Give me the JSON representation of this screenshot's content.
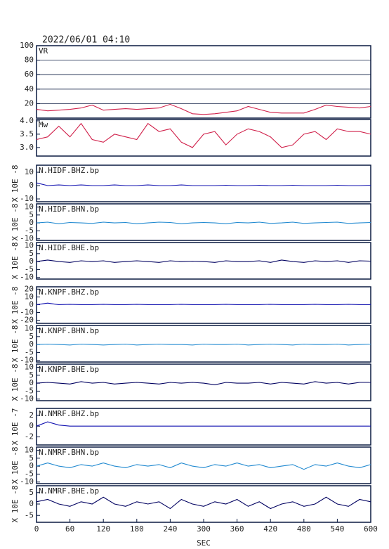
{
  "chart_data": [
    {
      "type": "line",
      "title": "2022/06/01 04:10",
      "label": "VR",
      "color": "#d0204a",
      "grid": true,
      "x": [
        0,
        20,
        40,
        60,
        80,
        100,
        120,
        140,
        160,
        180,
        200,
        220,
        240,
        260,
        280,
        300,
        320,
        340,
        360,
        380,
        400,
        420,
        440,
        460,
        480,
        500,
        520,
        540,
        560,
        580,
        600
      ],
      "values": [
        12,
        10,
        11,
        12,
        14,
        18,
        11,
        12,
        13,
        12,
        13,
        14,
        19,
        13,
        6,
        5,
        6,
        8,
        10,
        16,
        12,
        8,
        7,
        7,
        7,
        12,
        18,
        16,
        15,
        14,
        16
      ],
      "xlim": [
        0,
        600
      ],
      "ylim": [
        0,
        100
      ],
      "yticks": [
        20,
        40,
        60,
        80,
        100
      ]
    },
    {
      "type": "line",
      "label": "Mw",
      "color": "#d0204a",
      "grid": false,
      "x": [
        0,
        20,
        40,
        60,
        80,
        100,
        120,
        140,
        160,
        180,
        200,
        220,
        240,
        260,
        280,
        300,
        320,
        340,
        360,
        380,
        400,
        420,
        440,
        460,
        480,
        500,
        520,
        540,
        560,
        580,
        600
      ],
      "values": [
        3.3,
        3.4,
        3.8,
        3.4,
        3.9,
        3.3,
        3.2,
        3.5,
        3.4,
        3.3,
        3.9,
        3.6,
        3.7,
        3.2,
        3.0,
        3.5,
        3.6,
        3.1,
        3.5,
        3.7,
        3.6,
        3.4,
        3.0,
        3.1,
        3.5,
        3.6,
        3.3,
        3.7,
        3.6,
        3.6,
        3.5
      ],
      "xlim": [
        0,
        600
      ],
      "ylim": [
        2.68,
        4.05
      ],
      "yticks": [
        {
          "value": 3,
          "label": "3.0"
        },
        3.5,
        {
          "value": 4,
          "label": "4.0"
        }
      ]
    },
    {
      "type": "line",
      "label": "N.HIDF.BHZ.bp",
      "ylabel": "X 10E -8",
      "color": "#1010b0",
      "grid": false,
      "x": [
        0,
        20,
        40,
        60,
        80,
        100,
        120,
        140,
        160,
        180,
        200,
        220,
        240,
        260,
        280,
        300,
        320,
        340,
        360,
        380,
        400,
        420,
        440,
        460,
        480,
        500,
        520,
        540,
        560,
        580,
        600
      ],
      "values": [
        2,
        0,
        0.5,
        0,
        0.5,
        0,
        0,
        0.5,
        0,
        0,
        0.5,
        0,
        0,
        0.5,
        0,
        0,
        0,
        0.3,
        0,
        0,
        0.3,
        0,
        0,
        0.3,
        0,
        0,
        0,
        0.3,
        0,
        0,
        0.3
      ],
      "xlim": [
        0,
        600
      ],
      "ylim": [
        -12.1,
        15.3
      ],
      "yticks": [
        -10,
        0,
        10
      ]
    },
    {
      "type": "line",
      "label": "N.HIDF.BHN.bp",
      "ylabel": "X 10E -8",
      "color": "#1e88d0",
      "grid": false,
      "x": [
        0,
        20,
        40,
        60,
        80,
        100,
        120,
        140,
        160,
        180,
        200,
        220,
        240,
        260,
        280,
        300,
        320,
        340,
        360,
        380,
        400,
        420,
        440,
        460,
        480,
        500,
        520,
        540,
        560,
        580,
        600
      ],
      "values": [
        0,
        0.5,
        -0.5,
        0.3,
        0,
        -0.3,
        0.5,
        0,
        0.3,
        -0.5,
        0,
        0.5,
        0.3,
        -0.5,
        0,
        0.3,
        0,
        -0.5,
        0.3,
        0,
        0.5,
        -0.3,
        0,
        0.5,
        -0.3,
        0,
        0.3,
        0.5,
        -0.3,
        0,
        0.3
      ],
      "xlim": [
        0,
        600
      ],
      "ylim": [
        -11,
        12
      ],
      "yticks": [
        -10,
        -5,
        0,
        5,
        10
      ]
    },
    {
      "type": "line",
      "label": "N.HIDF.BHE.bp",
      "ylabel": "X 10E -8",
      "color": "#000060",
      "grid": false,
      "x": [
        0,
        20,
        40,
        60,
        80,
        100,
        120,
        140,
        160,
        180,
        200,
        220,
        240,
        260,
        280,
        300,
        320,
        340,
        360,
        380,
        400,
        420,
        440,
        460,
        480,
        500,
        520,
        540,
        560,
        580,
        600
      ],
      "values": [
        0,
        1,
        0,
        -0.5,
        0.5,
        0,
        0.5,
        -0.5,
        0,
        0.5,
        0,
        -0.5,
        0.5,
        0,
        0.3,
        0,
        -0.5,
        0.5,
        0,
        0,
        0.5,
        -0.5,
        1,
        0,
        -0.5,
        0.5,
        0,
        0.5,
        -0.5,
        0.5,
        0.3
      ],
      "xlim": [
        0,
        600
      ],
      "ylim": [
        -11,
        12
      ],
      "yticks": [
        -10,
        -5,
        0,
        5,
        10
      ]
    },
    {
      "type": "line",
      "label": "N.KNPF.BHZ.bp",
      "ylabel": "X 10E -8",
      "color": "#1010b0",
      "grid": false,
      "x": [
        0,
        20,
        40,
        60,
        80,
        100,
        120,
        140,
        160,
        180,
        200,
        220,
        240,
        260,
        280,
        300,
        320,
        340,
        360,
        380,
        400,
        420,
        440,
        460,
        480,
        500,
        520,
        540,
        560,
        580,
        600
      ],
      "values": [
        0,
        2,
        0,
        0.5,
        0,
        0,
        0.5,
        0,
        0,
        0.5,
        0,
        0,
        0,
        0.5,
        0,
        0,
        0,
        0.5,
        0,
        0,
        0,
        0.5,
        0,
        0,
        0,
        0.5,
        0,
        0,
        0.5,
        0,
        0
      ],
      "xlim": [
        0,
        600
      ],
      "ylim": [
        -24,
        23
      ],
      "yticks": [
        -20,
        -10,
        0,
        10,
        20
      ]
    },
    {
      "type": "line",
      "label": "N.KNPF.BHN.bp",
      "ylabel": "X 10E -8",
      "color": "#1e88d0",
      "grid": false,
      "x": [
        0,
        20,
        40,
        60,
        80,
        100,
        120,
        140,
        160,
        180,
        200,
        220,
        240,
        260,
        280,
        300,
        320,
        340,
        360,
        380,
        400,
        420,
        440,
        460,
        480,
        500,
        520,
        540,
        560,
        580,
        600
      ],
      "values": [
        0,
        0.3,
        0,
        -0.3,
        0.3,
        0,
        -0.3,
        0,
        0.3,
        -0.3,
        0,
        0.3,
        0,
        0,
        -0.3,
        0.3,
        0,
        0,
        0.3,
        -0.3,
        0,
        0.3,
        0,
        -0.3,
        0.3,
        0,
        0,
        0.3,
        -0.3,
        0,
        0.3
      ],
      "xlim": [
        0,
        600
      ],
      "ylim": [
        -11,
        12
      ],
      "yticks": [
        -10,
        -5,
        0,
        5,
        10
      ]
    },
    {
      "type": "line",
      "label": "N.KNPF.BHE.bp",
      "ylabel": "X 10E -8",
      "color": "#000060",
      "grid": false,
      "x": [
        0,
        20,
        40,
        60,
        80,
        100,
        120,
        140,
        160,
        180,
        200,
        220,
        240,
        260,
        280,
        300,
        320,
        340,
        360,
        380,
        400,
        420,
        440,
        460,
        480,
        500,
        520,
        540,
        560,
        580,
        600
      ],
      "values": [
        0,
        0.5,
        0,
        -0.5,
        1,
        0,
        0.5,
        -0.5,
        0,
        0.5,
        0,
        -0.5,
        0.5,
        0,
        0.5,
        0,
        -1,
        0.5,
        0,
        0,
        0.5,
        -0.5,
        0.5,
        0,
        -0.5,
        1,
        0,
        0.5,
        -0.5,
        0.5,
        0.5
      ],
      "xlim": [
        0,
        600
      ],
      "ylim": [
        -11,
        12
      ],
      "yticks": [
        -10,
        -5,
        0,
        5,
        10
      ]
    },
    {
      "type": "line",
      "label": "N.NMRF.BHZ.bp",
      "ylabel": "X 10E -7",
      "color": "#1010b0",
      "grid": false,
      "x": [
        0,
        20,
        40,
        60,
        80,
        100,
        120,
        140,
        160,
        180,
        200,
        220,
        240,
        260,
        280,
        300,
        320,
        340,
        360,
        380,
        400,
        420,
        440,
        460,
        480,
        500,
        520,
        540,
        560,
        580,
        600
      ],
      "values": [
        0,
        0.8,
        0.2,
        0,
        0,
        0,
        0,
        0,
        0,
        0,
        0,
        0,
        0,
        0,
        0,
        0,
        0,
        0,
        0,
        0,
        0,
        0,
        0,
        0,
        0,
        0,
        0,
        0,
        0,
        0,
        0
      ],
      "xlim": [
        0,
        600
      ],
      "ylim": [
        -3.5,
        3.3
      ],
      "yticks": [
        -2,
        0,
        2
      ]
    },
    {
      "type": "line",
      "label": "N.NMRF.BHN.bp",
      "ylabel": "X 10E -8",
      "color": "#1e88d0",
      "grid": false,
      "x": [
        0,
        20,
        40,
        60,
        80,
        100,
        120,
        140,
        160,
        180,
        200,
        220,
        240,
        260,
        280,
        300,
        320,
        340,
        360,
        380,
        400,
        420,
        440,
        460,
        480,
        500,
        520,
        540,
        560,
        580,
        600
      ],
      "values": [
        0,
        2,
        0,
        -1,
        1,
        0,
        2,
        0,
        -1,
        1,
        0,
        1,
        -1,
        2,
        0,
        -1,
        1,
        0,
        2,
        0,
        1,
        -1,
        0,
        1,
        -2,
        1,
        0,
        2,
        0,
        -1,
        1
      ],
      "xlim": [
        0,
        600
      ],
      "ylim": [
        -11,
        12
      ],
      "yticks": [
        -10,
        -5,
        0,
        5,
        10
      ]
    },
    {
      "type": "line",
      "label": "N.NMRF.BHE.bp",
      "ylabel": "X 10E -8",
      "color": "#000060",
      "grid": false,
      "x": [
        0,
        20,
        40,
        60,
        80,
        100,
        120,
        140,
        160,
        180,
        200,
        220,
        240,
        260,
        280,
        300,
        320,
        340,
        360,
        380,
        400,
        420,
        440,
        460,
        480,
        500,
        520,
        540,
        560,
        580,
        600
      ],
      "values": [
        1,
        2,
        0,
        -1,
        1,
        0,
        3,
        0,
        -1,
        1,
        0,
        1,
        -2,
        2,
        0,
        -1,
        1,
        0,
        2,
        -1,
        1,
        -2,
        0,
        1,
        -1,
        0,
        3,
        0,
        -1,
        2,
        1
      ],
      "xlim": [
        0,
        600
      ],
      "ylim": [
        -8,
        8
      ],
      "yticks": [
        -5,
        0,
        5
      ],
      "xlabel": "SEC",
      "xticks": [
        0,
        60,
        120,
        180,
        240,
        300,
        360,
        420,
        480,
        540,
        600
      ]
    }
  ]
}
